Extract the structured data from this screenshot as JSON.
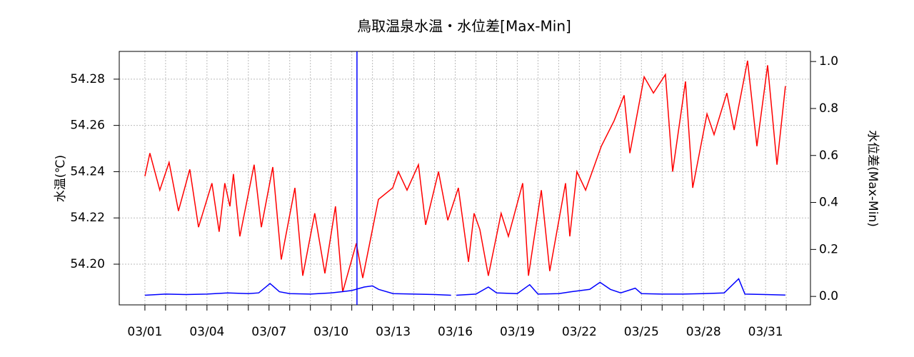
{
  "chart_data": {
    "type": "line",
    "title": "鳥取温泉水温・水位差[Max-Min]",
    "ylabel": "水温(℃)",
    "y2label": "水位差(Max-Min)",
    "xlim": [
      -0.24,
      33.17
    ],
    "xticks": [
      {
        "value": 1,
        "label": "03/01"
      },
      {
        "value": 4,
        "label": "03/04"
      },
      {
        "value": 7,
        "label": "03/07"
      },
      {
        "value": 10,
        "label": "03/10"
      },
      {
        "value": 13,
        "label": "03/13"
      },
      {
        "value": 16,
        "label": "03/16"
      },
      {
        "value": 19,
        "label": "03/19"
      },
      {
        "value": 22,
        "label": "03/22"
      },
      {
        "value": 25,
        "label": "03/25"
      },
      {
        "value": 28,
        "label": "03/28"
      },
      {
        "value": 31,
        "label": "03/31"
      }
    ],
    "xminorticks": [
      1,
      2,
      3,
      4,
      5,
      6,
      7,
      8,
      9,
      10,
      11,
      12,
      13,
      14,
      15,
      16,
      17,
      18,
      19,
      20,
      21,
      22,
      23,
      24,
      25,
      26,
      27,
      28,
      29,
      30,
      31,
      32
    ],
    "ylim": [
      54.1824,
      54.292
    ],
    "yticks": [
      {
        "value": 54.2,
        "label": "54.20"
      },
      54.22,
      54.24,
      54.26,
      54.28
    ],
    "y2lim": [
      -0.036,
      1.043
    ],
    "y2ticks": [
      {
        "value": 0,
        "label": "0.0"
      },
      0.2,
      0.4,
      0.6,
      0.8,
      {
        "value": 1,
        "label": "1.0"
      }
    ],
    "grid": true,
    "vline": {
      "x": 11.25,
      "color": "#0000ff"
    },
    "series": [
      {
        "name": "水温",
        "color": "#ff0000",
        "axis": "y",
        "x": [
          1.0,
          1.24,
          1.72,
          2.17,
          2.62,
          3.17,
          3.59,
          4.24,
          4.59,
          4.86,
          5.11,
          5.28,
          5.59,
          6.28,
          6.63,
          7.18,
          7.59,
          8.25,
          8.63,
          9.21,
          9.7,
          10.21,
          10.56,
          11.22,
          11.53,
          12.29,
          12.98,
          13.25,
          13.67,
          14.22,
          14.57,
          15.19,
          15.64,
          16.15,
          16.64,
          16.91,
          17.19,
          17.6,
          18.22,
          18.57,
          19.26,
          19.54,
          20.16,
          20.57,
          21.33,
          21.54,
          21.88,
          22.3,
          23.06,
          23.68,
          24.16,
          24.44,
          25.13,
          25.58,
          26.16,
          26.51,
          27.13,
          27.48,
          28.17,
          28.51,
          29.13,
          29.48,
          30.13,
          30.58,
          31.1,
          31.55,
          31.96
        ],
        "values": [
          54.238,
          54.248,
          54.232,
          54.244,
          54.223,
          54.241,
          54.216,
          54.235,
          54.214,
          54.235,
          54.225,
          54.239,
          54.212,
          54.243,
          54.216,
          54.242,
          54.202,
          54.233,
          54.195,
          54.222,
          54.196,
          54.225,
          54.188,
          54.209,
          54.194,
          54.228,
          54.233,
          54.24,
          54.232,
          54.243,
          54.217,
          54.24,
          54.219,
          54.233,
          54.201,
          54.222,
          54.215,
          54.195,
          54.222,
          54.212,
          54.235,
          54.195,
          54.232,
          54.197,
          54.235,
          54.212,
          54.24,
          54.232,
          54.251,
          54.262,
          54.273,
          54.248,
          54.281,
          54.274,
          54.282,
          54.24,
          54.279,
          54.233,
          54.265,
          54.256,
          54.274,
          54.258,
          54.288,
          54.251,
          54.286,
          54.243,
          54.277
        ]
      },
      {
        "name": "水位差",
        "color": "#0000ff",
        "axis": "y2",
        "x": [
          1,
          2,
          3,
          4,
          5,
          6,
          6.5,
          7.05,
          7.5,
          8,
          9,
          10,
          10.5,
          11,
          11.6,
          12,
          12.3,
          13,
          14,
          15,
          15.8,
          15.9,
          16.05,
          17,
          17.6,
          18,
          19,
          19.6,
          20,
          21,
          21.6,
          22.5,
          23,
          23.5,
          24,
          24.7,
          25,
          26,
          27,
          28,
          29,
          29.7,
          30,
          31,
          31.96
        ],
        "values": [
          0.005,
          0.01,
          0.008,
          0.01,
          0.015,
          0.012,
          0.015,
          0.055,
          0.02,
          0.012,
          0.01,
          0.015,
          0.02,
          0.025,
          0.04,
          0.045,
          0.03,
          0.012,
          0.01,
          0.008,
          0.005,
          null,
          0.005,
          0.01,
          0.04,
          0.015,
          0.012,
          0.05,
          0.01,
          0.012,
          0.02,
          0.03,
          0.06,
          0.03,
          0.015,
          0.035,
          0.012,
          0.01,
          0.01,
          0.012,
          0.015,
          0.075,
          0.01,
          0.008,
          0.006
        ]
      }
    ]
  }
}
